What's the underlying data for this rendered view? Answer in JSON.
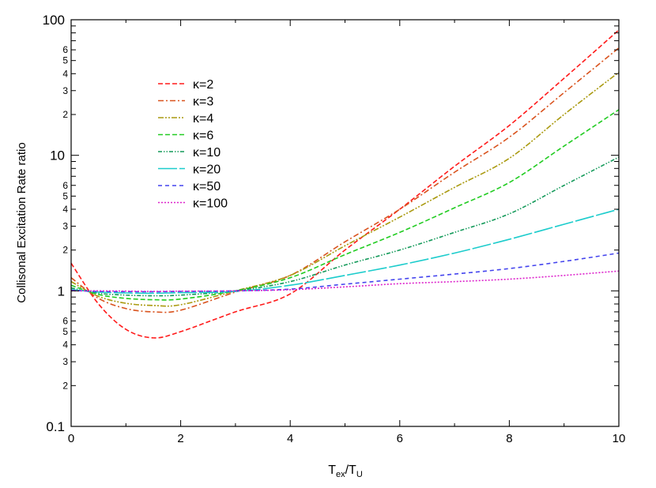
{
  "chart_data": {
    "type": "line",
    "xlabel": {
      "main": "T",
      "sub1": "ex",
      "sep": "/T",
      "sub2": "U"
    },
    "ylabel": "Collisonal Excitation Rate ratio",
    "xlim": [
      0,
      10
    ],
    "ylim": [
      0.1,
      100
    ],
    "yscale": "log",
    "grid": false,
    "legend_placement": "top-left",
    "x_ticks": [
      "0",
      "2",
      "4",
      "6",
      "8",
      "10"
    ],
    "y_major_ticks": [
      "0.1",
      "1",
      "10",
      "100"
    ],
    "y_minor_labels": [
      "2",
      "3",
      "4",
      "5",
      "6"
    ],
    "x": [
      0,
      0.5,
      1,
      1.5,
      2,
      3,
      4,
      5,
      6,
      7,
      8,
      9,
      10
    ],
    "series": [
      {
        "name": "κ=2",
        "color": "#ff1a1a",
        "dash": "6,3",
        "values": [
          1.6,
          0.8,
          0.52,
          0.45,
          0.5,
          0.7,
          0.95,
          2.0,
          4.0,
          8.3,
          16.6,
          37,
          84
        ]
      },
      {
        "name": "κ=3",
        "color": "#d9531e",
        "dash": "7,3,2,3",
        "values": [
          1.25,
          0.88,
          0.74,
          0.7,
          0.72,
          0.98,
          1.3,
          2.3,
          4.0,
          7.5,
          13.6,
          29,
          62
        ]
      },
      {
        "name": "κ=4",
        "color": "#aa9a10",
        "dash": "7,2,2,2,2,2",
        "values": [
          1.17,
          0.91,
          0.81,
          0.78,
          0.79,
          1.0,
          1.3,
          2.15,
          3.5,
          5.8,
          9.5,
          20,
          41
        ]
      },
      {
        "name": "κ=6",
        "color": "#22cc22",
        "dash": "6,3",
        "values": [
          1.1,
          0.94,
          0.88,
          0.86,
          0.87,
          1.0,
          1.25,
          1.85,
          2.7,
          4.1,
          6.3,
          11.7,
          21.7
        ]
      },
      {
        "name": "κ=10",
        "color": "#149a5a",
        "dash": "5,2,1.5,2,1.5,2",
        "values": [
          1.05,
          0.96,
          0.93,
          0.92,
          0.93,
          1.0,
          1.17,
          1.55,
          2.0,
          2.7,
          3.7,
          6.0,
          9.7
        ]
      },
      {
        "name": "κ=20",
        "color": "#1ccccc",
        "dash": "24,3",
        "values": [
          1.02,
          0.98,
          0.965,
          0.96,
          0.97,
          0.99,
          1.1,
          1.3,
          1.55,
          1.9,
          2.4,
          3.1,
          4.0
        ]
      },
      {
        "name": "κ=50",
        "color": "#4444ee",
        "dash": "5,4",
        "values": [
          1.01,
          0.99,
          0.987,
          0.985,
          0.99,
          1.0,
          1.03,
          1.12,
          1.22,
          1.33,
          1.46,
          1.65,
          1.9
        ]
      },
      {
        "name": "κ=100",
        "color": "#dd22cc",
        "dash": "2,2",
        "values": [
          1.0,
          1.0,
          0.995,
          0.99,
          0.995,
          1.0,
          1.02,
          1.07,
          1.13,
          1.17,
          1.22,
          1.3,
          1.4
        ]
      }
    ]
  }
}
